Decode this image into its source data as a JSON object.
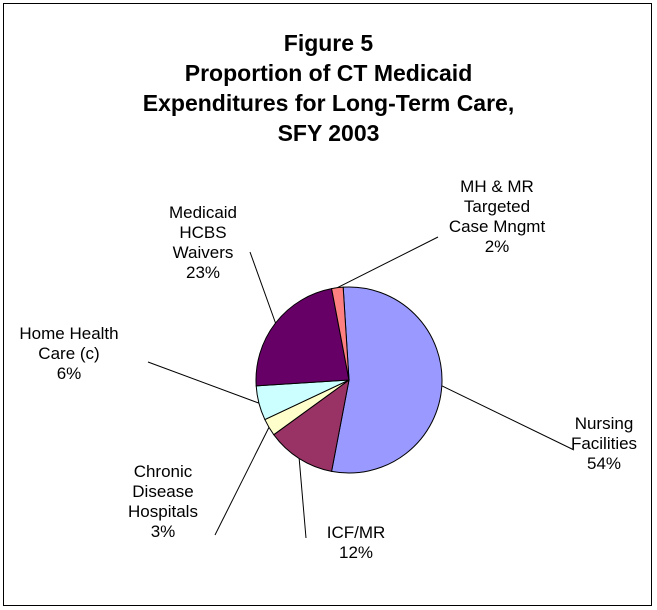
{
  "chart_data": {
    "type": "pie",
    "title_lines": [
      "Figure 5",
      "Proportion of CT Medicaid",
      "Expenditures for Long-Term Care,",
      "SFY 2003"
    ],
    "start_angle_deg": -3.6,
    "direction": "clockwise",
    "slices": [
      {
        "key": "nursing",
        "label_lines": [
          "Nursing",
          "Facilities"
        ],
        "value": 54,
        "pct_label": "54%",
        "color": "#9999ff"
      },
      {
        "key": "icfmr",
        "label_lines": [
          "ICF/MR"
        ],
        "value": 12,
        "pct_label": "12%",
        "color": "#993366"
      },
      {
        "key": "chronic",
        "label_lines": [
          "Chronic",
          "Disease",
          "Hospitals"
        ],
        "value": 3,
        "pct_label": "3%",
        "color": "#ffffcc"
      },
      {
        "key": "homehealth",
        "label_lines": [
          "Home Health",
          "Care (c)"
        ],
        "value": 6,
        "pct_label": "6%",
        "color": "#ccffff"
      },
      {
        "key": "hcbs",
        "label_lines": [
          "Medicaid",
          "HCBS",
          "Waivers"
        ],
        "value": 23,
        "pct_label": "23%",
        "color": "#660066"
      },
      {
        "key": "mhmr",
        "label_lines": [
          "MH & MR",
          "Targeted",
          "Case Mngmt"
        ],
        "value": 2,
        "pct_label": "2%",
        "color": "#ff8080"
      }
    ]
  }
}
